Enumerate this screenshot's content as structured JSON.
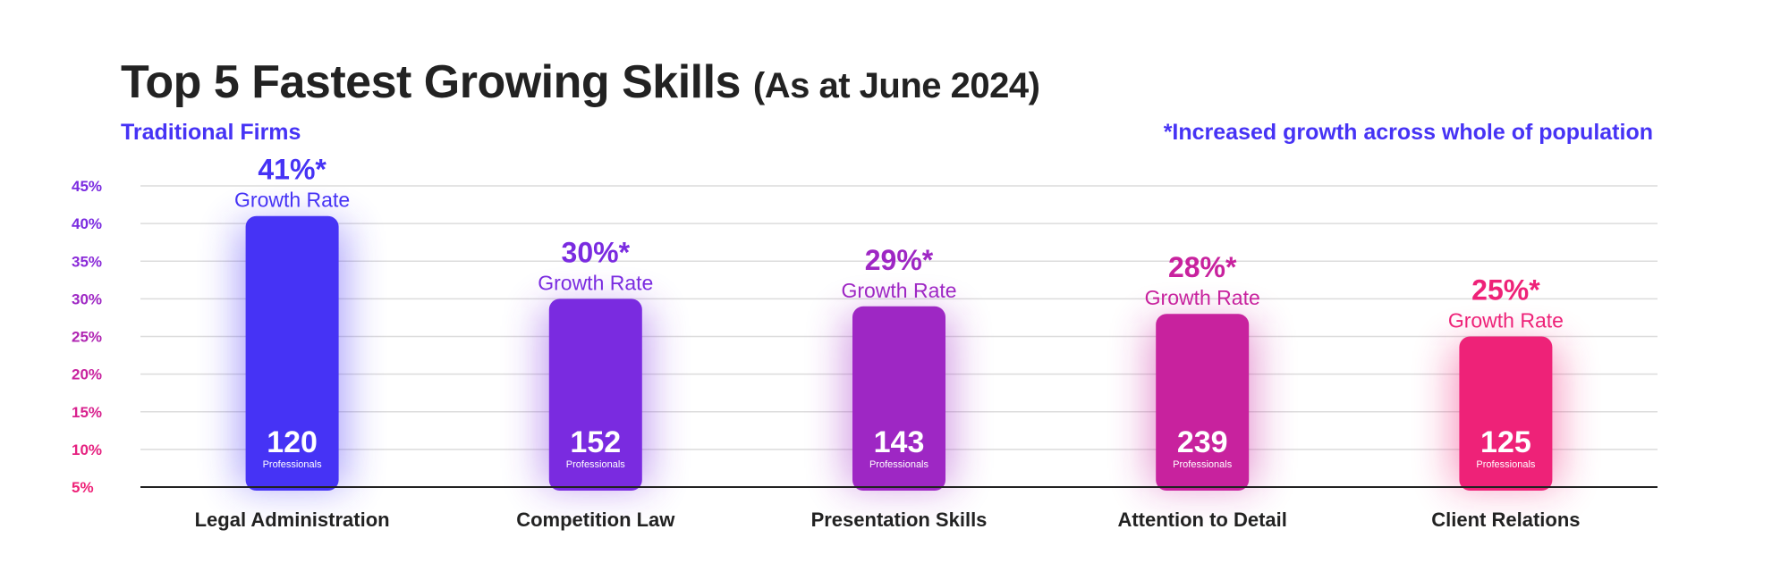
{
  "header": {
    "title_main": "Top 5 Fastest Growing Skills",
    "title_sub": "(As at June 2024)",
    "segment_label": "Traditional Firms",
    "footnote": "*Increased growth across whole of population"
  },
  "chart_data": {
    "type": "bar",
    "title": "Top 5 Fastest Growing Skills (As at June 2024)",
    "subtitle": "Traditional Firms",
    "annotation": "*Increased growth across whole of population",
    "categories": [
      "Legal Administration",
      "Competition Law",
      "Presentation Skills",
      "Attention to Detail",
      "Client Relations"
    ],
    "values": [
      41,
      30,
      29,
      28,
      25
    ],
    "value_labels": [
      "41%*",
      "30%*",
      "29%*",
      "28%*",
      "25%*"
    ],
    "rate_label": "Growth Rate",
    "counts": [
      "120",
      "152",
      "143",
      "239",
      "125"
    ],
    "count_label": "Professionals",
    "colors": [
      "#4633f5",
      "#7a2be0",
      "#9e27c4",
      "#c8229e",
      "#ee2278"
    ],
    "yticks": [
      "45%",
      "40%",
      "35%",
      "30%",
      "25%",
      "20%",
      "15%",
      "10%",
      "5%"
    ],
    "ytick_values": [
      45,
      40,
      35,
      30,
      25,
      20,
      15,
      10,
      5
    ],
    "ytick_colors": [
      "#7a2be0",
      "#7a2be0",
      "#8a2ad8",
      "#9e27c4",
      "#b025b2",
      "#c8229e",
      "#d8228e",
      "#e52280",
      "#ee2278"
    ],
    "ylim": [
      5,
      45
    ],
    "grid": true,
    "xlabel": "",
    "ylabel": ""
  }
}
